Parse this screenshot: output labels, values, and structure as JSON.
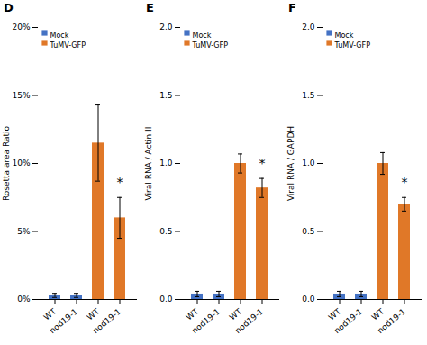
{
  "chart_data": [
    {
      "type": "bar",
      "title": "D",
      "categories": [
        "WT",
        "nod19-1",
        "WT",
        "nod19-1"
      ],
      "series": [
        {
          "name": "Mock",
          "color": "#4472C4",
          "values": [
            0.3,
            0.3,
            null,
            null
          ],
          "errors": [
            0.15,
            0.15,
            null,
            null
          ]
        },
        {
          "name": "TuMV-GFP",
          "color": "#E07828",
          "values": [
            null,
            null,
            11.5,
            6.0
          ],
          "errors": [
            null,
            null,
            2.8,
            1.5
          ]
        }
      ],
      "ylabel": "Rosetta area Ratio",
      "ylim": [
        0,
        20
      ],
      "yticks": [
        {
          "value": 0,
          "label": "0%"
        },
        {
          "value": 5,
          "label": "5%"
        },
        {
          "value": 10,
          "label": "10%"
        },
        {
          "value": 15,
          "label": "15%"
        },
        {
          "value": 20,
          "label": "20%"
        }
      ],
      "legend": "upper left",
      "annotations": [
        {
          "text": "*",
          "index": 3
        }
      ]
    },
    {
      "type": "bar",
      "title": "E",
      "categories": [
        "WT",
        "nod19-1",
        "WT",
        "nod19-1"
      ],
      "series": [
        {
          "name": "Mock",
          "color": "#4472C4",
          "values": [
            0.04,
            0.04,
            null,
            null
          ],
          "errors": [
            0.02,
            0.02,
            null,
            null
          ]
        },
        {
          "name": "TuMV-GFP",
          "color": "#E07828",
          "values": [
            null,
            null,
            1.0,
            0.82
          ],
          "errors": [
            null,
            null,
            0.07,
            0.07
          ]
        }
      ],
      "ylabel": "Viral RNA / Actin II",
      "ylim": [
        0,
        2.0
      ],
      "yticks": [
        {
          "value": 0,
          "label": "0.0"
        },
        0.5,
        {
          "value": 1,
          "label": "1.0"
        },
        1.5,
        {
          "value": 2,
          "label": "2.0"
        }
      ],
      "legend": "upper left",
      "annotations": [
        {
          "text": "*",
          "index": 3
        }
      ]
    },
    {
      "type": "bar",
      "title": "F",
      "categories": [
        "WT",
        "nod19-1",
        "WT",
        "nod19-1"
      ],
      "series": [
        {
          "name": "Mock",
          "color": "#4472C4",
          "values": [
            0.04,
            0.04,
            null,
            null
          ],
          "errors": [
            0.02,
            0.02,
            null,
            null
          ]
        },
        {
          "name": "TuMV-GFP",
          "color": "#E07828",
          "values": [
            null,
            null,
            1.0,
            0.7
          ],
          "errors": [
            null,
            null,
            0.08,
            0.05
          ]
        }
      ],
      "ylabel": "Viral RNA / GAPDH",
      "ylim": [
        0,
        2.0
      ],
      "yticks": [
        {
          "value": 0,
          "label": "0.0"
        },
        0.5,
        {
          "value": 1,
          "label": "1.0"
        },
        1.5,
        {
          "value": 2,
          "label": "2.0"
        }
      ],
      "legend": "upper left",
      "annotations": [
        {
          "text": "*",
          "index": 3
        }
      ]
    }
  ]
}
